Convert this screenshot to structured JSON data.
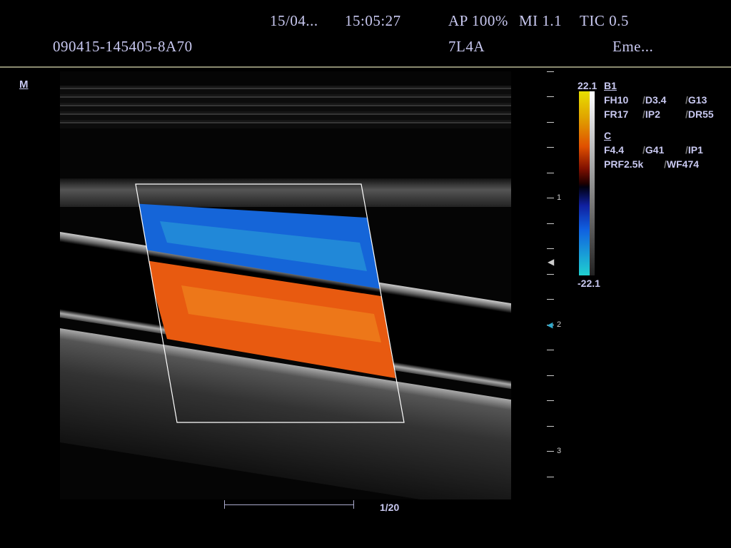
{
  "header": {
    "date": "15/04...",
    "time": "15:05:27",
    "power": "AP 100%",
    "mi": "MI 1.1",
    "tic": "TIC 0.5",
    "patient_id": "090415-145405-8A70",
    "probe": "7L4A",
    "preset": "Eme..."
  },
  "marker": "M",
  "depth_labels": [
    "1",
    "2",
    "3"
  ],
  "colorbar": {
    "max": "22.1",
    "min": "-22.1",
    "colors": [
      "#e8e000",
      "#e05000",
      "#1060e0",
      "#20d0d0"
    ]
  },
  "params": {
    "b_title": "B1",
    "b_rows": [
      [
        "FH10",
        "D3.4",
        "G13"
      ],
      [
        "FR17",
        "IP2",
        "DR55"
      ]
    ],
    "c_title": "C",
    "c_rows": [
      [
        "F4.4",
        "G41",
        "IP1"
      ],
      [
        "PRF2.5k",
        "WF474"
      ]
    ],
    "separator": "/"
  },
  "scale": {
    "label": "1/20"
  }
}
